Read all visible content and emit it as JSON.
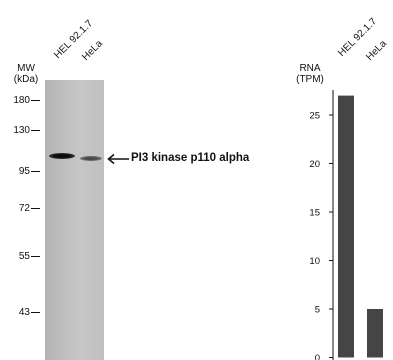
{
  "blot": {
    "mw_label_line1": "MW",
    "mw_label_line2": "(kDa)",
    "lanes": [
      "HEL 92.1.7",
      "HeLa"
    ],
    "markers": [
      "180",
      "130",
      "95",
      "72",
      "55",
      "43"
    ],
    "target_label": "PI3 kinase p110 alpha"
  },
  "rna": {
    "label_line1": "RNA",
    "label_line2": "(TPM)"
  },
  "chart_data": {
    "type": "bar",
    "categories": [
      "HEL 92.1.7",
      "HeLa"
    ],
    "values": [
      27,
      5
    ],
    "ylabel": "RNA (TPM)",
    "ylim": [
      0,
      28
    ],
    "yticks": [
      0,
      5,
      10,
      15,
      20,
      25
    ],
    "bar_color": "#454545"
  }
}
